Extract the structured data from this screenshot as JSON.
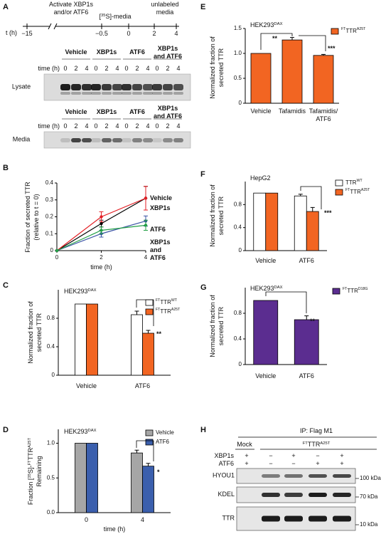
{
  "panel_labels": [
    "A",
    "B",
    "C",
    "D",
    "E",
    "F",
    "G",
    "H"
  ],
  "panel_a": {
    "timeline": {
      "axis_label": "t (h)",
      "ticks": [
        "−15",
        "−0.5",
        "0",
        "2",
        "4"
      ],
      "annotations": [
        [
          "Activate XBP1s",
          "and/or ATF6"
        ],
        [
          [
            "[",
            {
              "sup": "35"
            },
            "S]-media"
          ]
        ],
        [
          "unlabeled",
          "media"
        ]
      ]
    },
    "gels": [
      {
        "label": "Lysate",
        "time_label": "time (h)",
        "times": [
          "0",
          "2",
          "4"
        ],
        "groups": [
          {
            "name": "Vehicle",
            "color": "#000000"
          },
          {
            "name": "XBP1s",
            "color": "#e31e24"
          },
          {
            "name": "ATF6",
            "color": "#3a53a4"
          },
          {
            "name": [
              "XBP1s",
              "and ATF6"
            ],
            "color": "#24a147"
          }
        ]
      },
      {
        "label": "Media",
        "time_label": "time (h)",
        "times": [
          "0",
          "2",
          "4"
        ],
        "groups": [
          {
            "name": "Vehicle",
            "color": "#000000"
          },
          {
            "name": "XBP1s",
            "color": "#e31e24"
          },
          {
            "name": "ATF6",
            "color": "#3a53a4"
          },
          {
            "name": [
              "XBP1s",
              "and ATF6"
            ],
            "color": "#24a147"
          }
        ]
      }
    ]
  },
  "chart_data": [
    {
      "type": "line",
      "ylabel": [
        "Fraction of secreted TTR",
        "(relative to t = 0)"
      ],
      "xlabel": "time (h)",
      "x": [
        0,
        2,
        4
      ],
      "xlim": [
        0,
        4
      ],
      "xticks": [
        0,
        2,
        4
      ],
      "ylim": [
        0,
        0.4
      ],
      "yticks": [
        0,
        0.1,
        0.2,
        0.3,
        0.4
      ],
      "series": [
        {
          "name": "Vehicle",
          "color": "#000000",
          "values": [
            0,
            0.16,
            0.31
          ],
          "errors": [
            0,
            0.02,
            0.07
          ]
        },
        {
          "name": "XBP1s",
          "color": "#e31e24",
          "values": [
            0,
            0.2,
            0.31
          ],
          "errors": [
            0,
            0.03,
            0.07
          ]
        },
        {
          "name": "ATF6",
          "color": "#3a53a4",
          "values": [
            0,
            0.1,
            0.175
          ],
          "errors": [
            0,
            0.02,
            0.03
          ]
        },
        {
          "name": [
            "XBP1s",
            "and",
            "ATF6"
          ],
          "color": "#24a147",
          "values": [
            0,
            0.12,
            0.15
          ],
          "errors": [
            0,
            0.02,
            0.03
          ]
        }
      ]
    },
    {
      "type": "bar",
      "title": [
        "HEK293",
        {
          "sup": "DAX"
        }
      ],
      "ylabel": [
        "Normalized fraction of",
        "secreted TTR"
      ],
      "categories": [
        "Vehicle",
        "ATF6"
      ],
      "ylim": [
        0,
        1.2
      ],
      "yticks": [
        0,
        0.4,
        0.8
      ],
      "series": [
        {
          "name": [
            {
              "sup": "FT"
            },
            "TTR",
            {
              "sup": "WT"
            }
          ],
          "color": "#ffffff",
          "values": [
            1,
            0.85
          ],
          "errors": [
            0,
            0.05
          ]
        },
        {
          "name": [
            {
              "sup": "FT"
            },
            "TTR",
            {
              "sup": "A25T"
            }
          ],
          "color": "#f26522",
          "values": [
            1,
            0.59
          ],
          "errors": [
            0,
            0.04
          ]
        }
      ],
      "annotations": [
        "**"
      ]
    },
    {
      "type": "bar",
      "title": [
        "HEK293",
        {
          "sup": "DAX"
        }
      ],
      "ylabel": [
        [
          "Fraction [",
          {
            "sup": "35"
          },
          "S]-",
          {
            "sup": "FT"
          },
          "TTR",
          {
            "sup": "A25T"
          }
        ],
        "Remaining"
      ],
      "xlabel": "time (h)",
      "categories": [
        "0",
        "4"
      ],
      "ylim": [
        0,
        1.2
      ],
      "yticks": [
        {
          "value": 0,
          "label": "0.0"
        },
        0.5,
        {
          "value": 1,
          "label": "1.0"
        }
      ],
      "series": [
        {
          "name": "Vehicle",
          "color": "#a6a6a6",
          "values": [
            1,
            0.86
          ],
          "errors": [
            0,
            0.04
          ]
        },
        {
          "name": "ATF6",
          "color": "#3b5fad",
          "values": [
            1,
            0.67
          ],
          "errors": [
            0,
            0.04
          ]
        }
      ],
      "annotations": [
        "*"
      ]
    },
    {
      "type": "bar",
      "title": [
        "HEK293",
        {
          "sup": "DAX"
        }
      ],
      "ylabel": [
        "Normalized fraction of",
        "secreted TTR"
      ],
      "categories": [
        "Vehicle",
        "Tafamidis",
        [
          "Tafamidis/",
          "ATF6"
        ]
      ],
      "ylim": [
        0,
        1.5
      ],
      "yticks": [
        0,
        0.5,
        {
          "value": 1,
          "label": "1.0"
        },
        1.5
      ],
      "series": [
        {
          "name": [
            {
              "sup": "FT"
            },
            "TTR",
            {
              "sup": "A25T"
            }
          ],
          "color": "#f26522",
          "values": [
            1,
            1.27,
            0.96
          ],
          "errors": [
            0,
            0.05,
            0.02
          ]
        }
      ],
      "annotations": [
        "**",
        "***"
      ]
    },
    {
      "type": "bar",
      "title": "HepG2",
      "ylabel": [
        "Normalized fraction of",
        "secreted TTR"
      ],
      "categories": [
        "Vehicle",
        "ATF6"
      ],
      "ylim": [
        0,
        1.2
      ],
      "yticks": [
        0,
        0.4,
        0.8
      ],
      "series": [
        {
          "name": [
            "TTR",
            {
              "sup": "WT"
            }
          ],
          "color": "#ffffff",
          "values": [
            1,
            0.95
          ],
          "errors": [
            0,
            0.03
          ]
        },
        {
          "name": [
            {
              "sup": "FT"
            },
            "TTR",
            {
              "sup": "A25T"
            }
          ],
          "color": "#f26522",
          "values": [
            1,
            0.68
          ],
          "errors": [
            0,
            0.07
          ]
        }
      ],
      "annotations": [
        "***"
      ]
    },
    {
      "type": "bar",
      "title": [
        "HEK293",
        {
          "sup": "DAX"
        }
      ],
      "ylabel": [
        "Normalized fraction of",
        "secreted TTR"
      ],
      "categories": [
        "Vehicle",
        "ATF6"
      ],
      "ylim": [
        0,
        1.2
      ],
      "yticks": [
        0,
        0.4,
        0.8
      ],
      "series": [
        {
          "name": [
            {
              "sup": "FT"
            },
            "TTR",
            {
              "sup": "D18G"
            }
          ],
          "color": "#5b2d90",
          "values": [
            1,
            0.7
          ],
          "errors": [
            0,
            0.06
          ]
        }
      ],
      "annotations": [
        "**"
      ]
    }
  ],
  "panel_h": {
    "title": "IP: Flag M1",
    "mock": "Mock",
    "group": [
      {
        "sup": "FT"
      },
      "TTR",
      {
        "sup": "A25T"
      }
    ],
    "rows": [
      {
        "label": "XBP1s",
        "signs": [
          "+",
          "−",
          "+",
          "−",
          "+"
        ]
      },
      {
        "label": "ATF6",
        "signs": [
          "+",
          "−",
          "−",
          "+",
          "+"
        ]
      }
    ],
    "blots": [
      {
        "label": "HYOU1",
        "marker": "100 kDa"
      },
      {
        "label": "KDEL",
        "marker": "70 kDa"
      },
      {
        "label": "TTR",
        "marker": "10 kDa"
      }
    ]
  }
}
